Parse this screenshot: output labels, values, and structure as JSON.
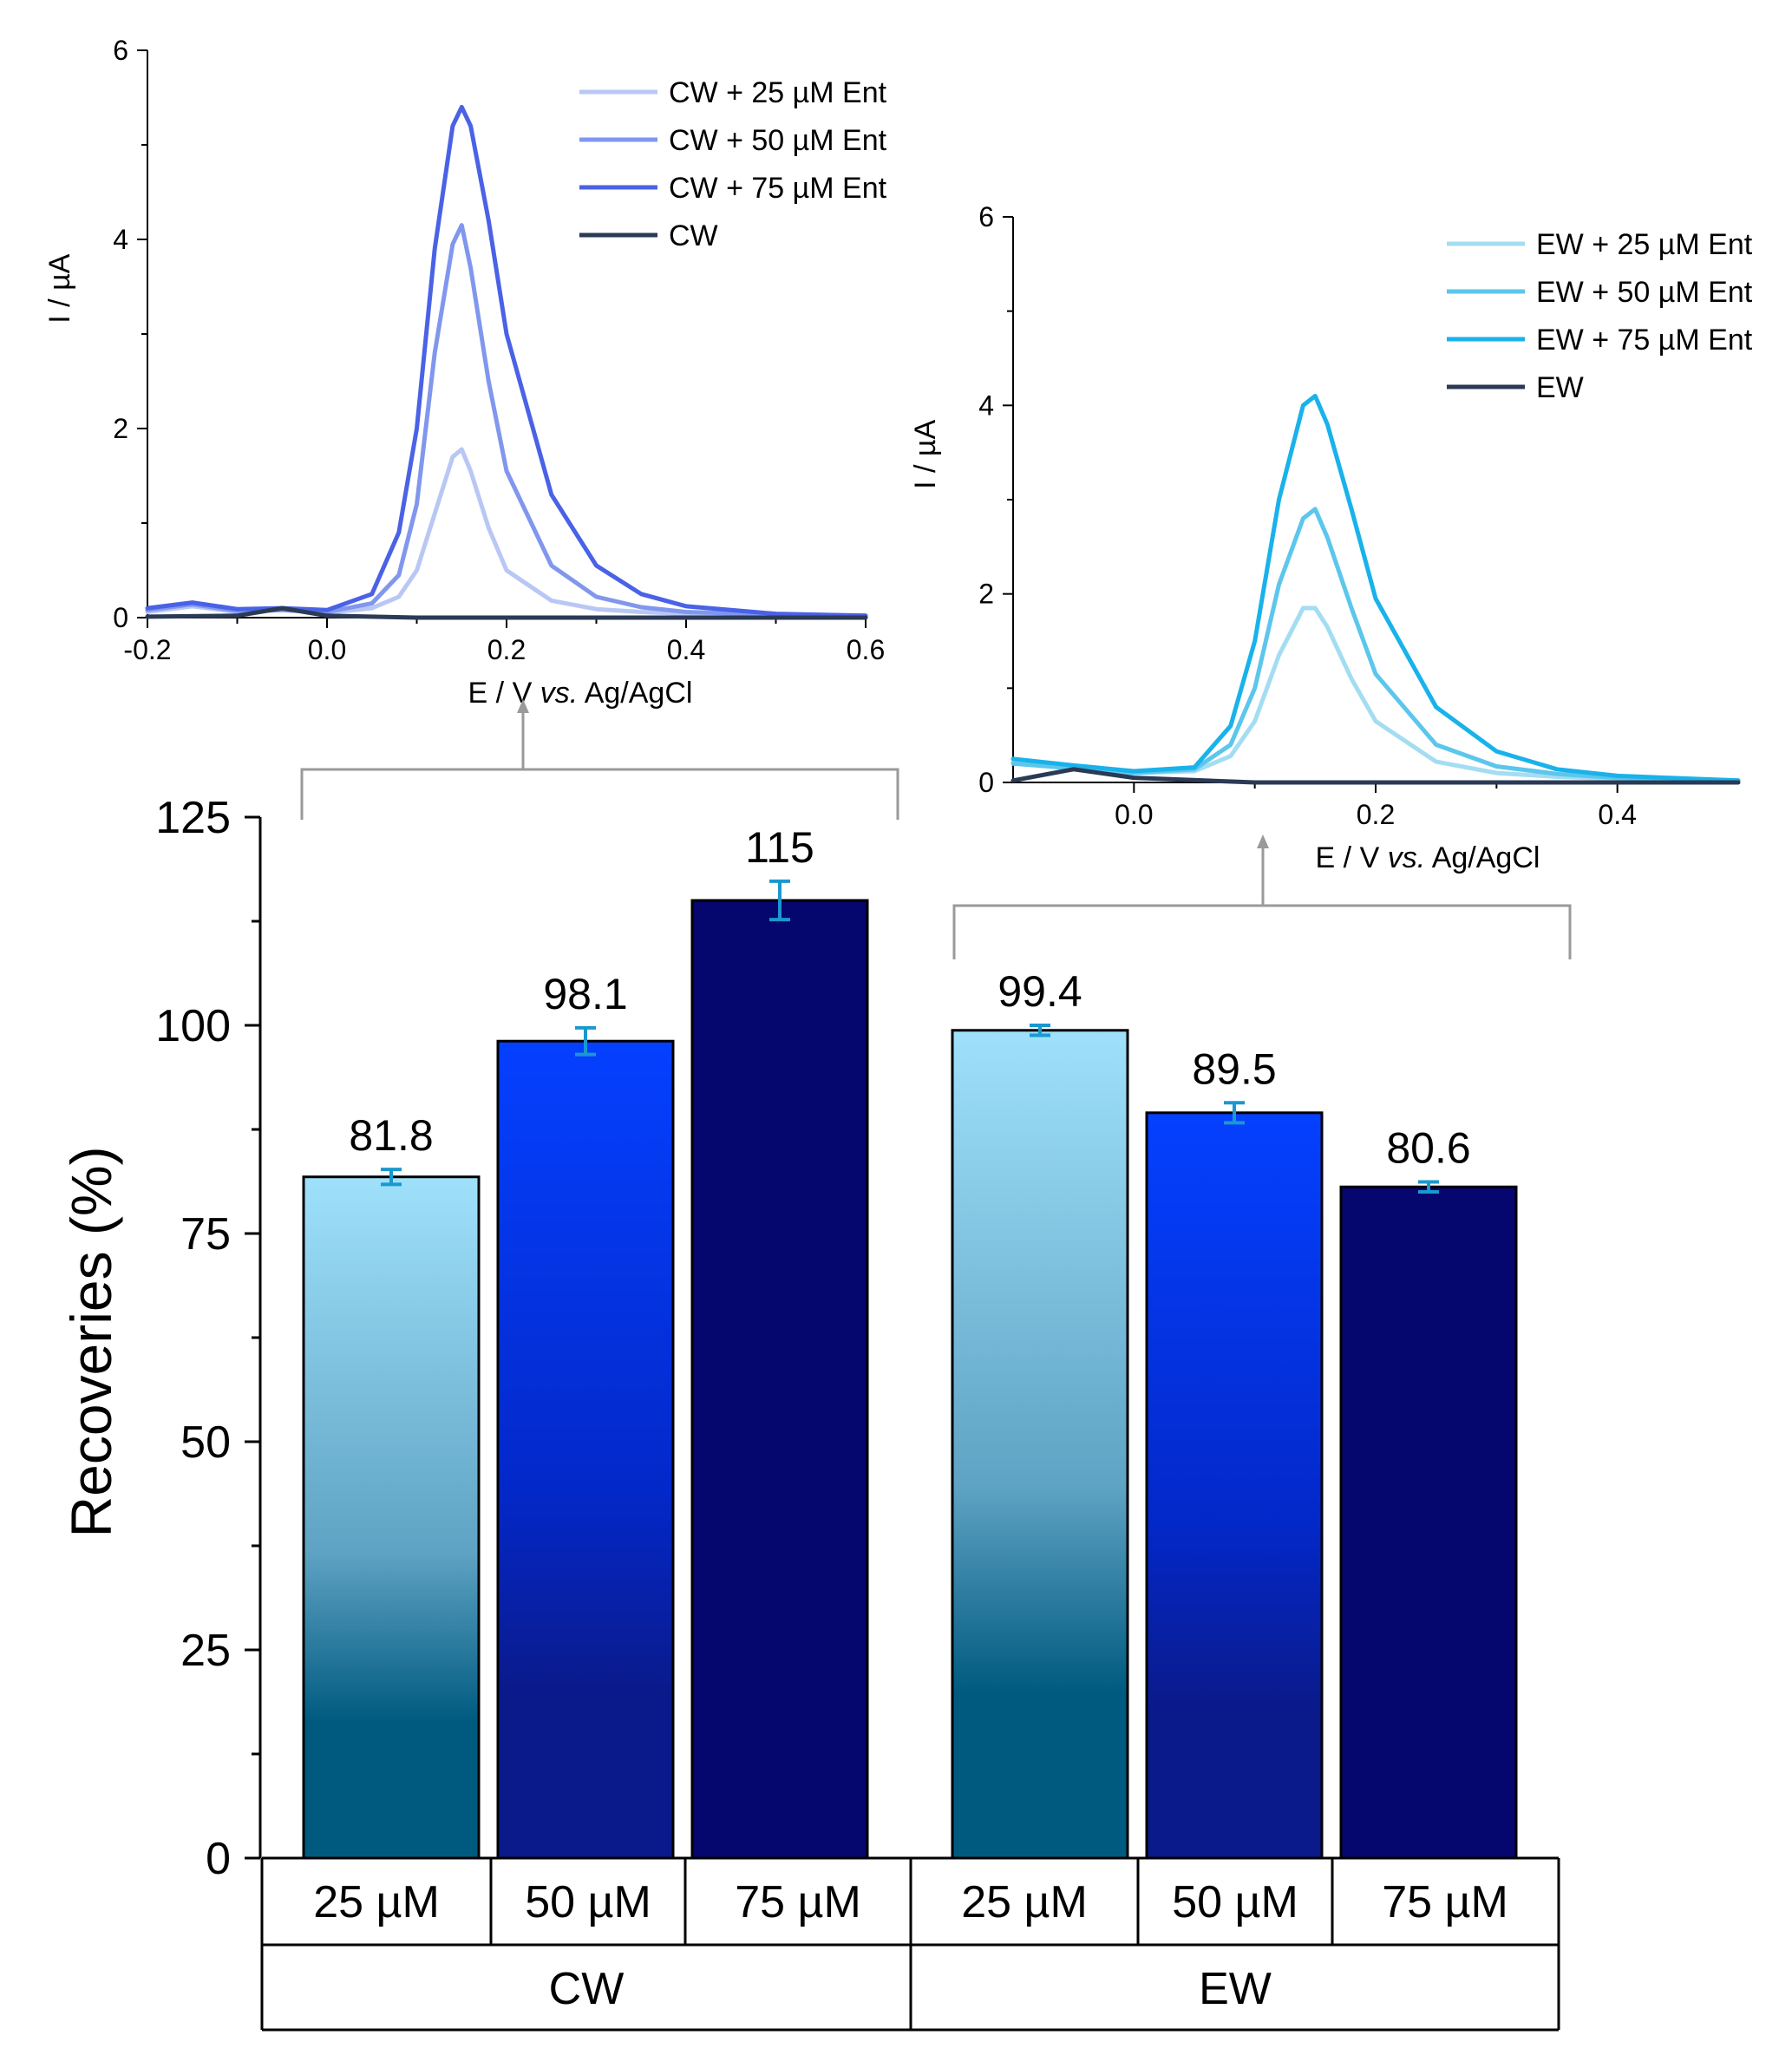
{
  "chart_data": [
    {
      "id": "cw_voltammogram",
      "type": "line",
      "xlabel_parts": [
        "E / V ",
        "vs.",
        " Ag/AgCl"
      ],
      "ylabel": "I / µA",
      "xlim": [
        -0.2,
        0.6
      ],
      "ylim": [
        0,
        6
      ],
      "xticks": [
        -0.2,
        0.0,
        0.2,
        0.4,
        0.6
      ],
      "xtick_labels": [
        "-0.2",
        "0.0",
        "0.2",
        "0.4",
        "0.6"
      ],
      "yticks": [
        0,
        2,
        4,
        6
      ],
      "ytick_labels": [
        "0",
        "2",
        "4",
        "6"
      ],
      "legend_position": "top-right",
      "series": [
        {
          "name": "CW + 25 µM Ent",
          "color": "#b9c7f5",
          "x": [
            -0.2,
            -0.15,
            -0.1,
            -0.05,
            0.0,
            0.05,
            0.08,
            0.1,
            0.12,
            0.14,
            0.15,
            0.16,
            0.18,
            0.2,
            0.25,
            0.3,
            0.35,
            0.4,
            0.5,
            0.6
          ],
          "y": [
            0.06,
            0.12,
            0.06,
            0.08,
            0.05,
            0.1,
            0.22,
            0.5,
            1.1,
            1.7,
            1.78,
            1.55,
            0.95,
            0.5,
            0.18,
            0.09,
            0.06,
            0.04,
            0.03,
            0.02
          ]
        },
        {
          "name": "CW + 50 µM Ent",
          "color": "#8197ee",
          "x": [
            -0.2,
            -0.15,
            -0.1,
            -0.05,
            0.0,
            0.05,
            0.08,
            0.1,
            0.12,
            0.14,
            0.15,
            0.16,
            0.18,
            0.2,
            0.25,
            0.3,
            0.35,
            0.4,
            0.5,
            0.6
          ],
          "y": [
            0.08,
            0.14,
            0.07,
            0.08,
            0.06,
            0.15,
            0.45,
            1.2,
            2.8,
            3.95,
            4.15,
            3.7,
            2.5,
            1.55,
            0.55,
            0.22,
            0.11,
            0.06,
            0.03,
            0.02
          ]
        },
        {
          "name": "CW + 75 µM Ent",
          "color": "#4a62e6",
          "x": [
            -0.2,
            -0.15,
            -0.1,
            -0.05,
            0.0,
            0.05,
            0.08,
            0.1,
            0.12,
            0.14,
            0.15,
            0.16,
            0.18,
            0.2,
            0.25,
            0.3,
            0.35,
            0.4,
            0.5,
            0.6
          ],
          "y": [
            0.1,
            0.16,
            0.09,
            0.1,
            0.08,
            0.25,
            0.9,
            2.0,
            3.9,
            5.2,
            5.4,
            5.2,
            4.2,
            3.0,
            1.3,
            0.55,
            0.25,
            0.12,
            0.04,
            0.02
          ]
        },
        {
          "name": "CW",
          "color": "#2b3a55",
          "x": [
            -0.2,
            -0.1,
            -0.05,
            0.0,
            0.1,
            0.2,
            0.4,
            0.6
          ],
          "y": [
            0.01,
            0.02,
            0.1,
            0.02,
            0.0,
            0.0,
            0.0,
            0.0
          ]
        }
      ]
    },
    {
      "id": "ew_voltammogram",
      "type": "line",
      "xlabel_parts": [
        "E / V ",
        "vs.",
        " Ag/AgCl"
      ],
      "ylabel": "I / µA",
      "xlim": [
        -0.1,
        0.5
      ],
      "ylim": [
        0,
        6
      ],
      "xticks": [
        0.0,
        0.2,
        0.4
      ],
      "xtick_labels": [
        "0.0",
        "0.2",
        "0.4"
      ],
      "yticks": [
        0,
        2,
        4,
        6
      ],
      "ytick_labels": [
        "0",
        "2",
        "4",
        "6"
      ],
      "legend_position": "top-right",
      "series": [
        {
          "name": "EW + 25 µM Ent",
          "color": "#a3ddf2",
          "x": [
            -0.1,
            -0.05,
            0.0,
            0.05,
            0.08,
            0.1,
            0.12,
            0.14,
            0.15,
            0.16,
            0.18,
            0.2,
            0.25,
            0.3,
            0.35,
            0.4,
            0.5
          ],
          "y": [
            0.22,
            0.14,
            0.1,
            0.12,
            0.28,
            0.65,
            1.35,
            1.85,
            1.85,
            1.65,
            1.1,
            0.65,
            0.22,
            0.1,
            0.06,
            0.04,
            0.02
          ]
        },
        {
          "name": "EW + 50 µM Ent",
          "color": "#5cc6ec",
          "x": [
            -0.1,
            -0.05,
            0.0,
            0.05,
            0.08,
            0.1,
            0.12,
            0.14,
            0.15,
            0.16,
            0.18,
            0.2,
            0.25,
            0.3,
            0.35,
            0.4,
            0.5
          ],
          "y": [
            0.2,
            0.15,
            0.1,
            0.14,
            0.4,
            1.0,
            2.1,
            2.8,
            2.9,
            2.6,
            1.85,
            1.15,
            0.4,
            0.17,
            0.09,
            0.05,
            0.02
          ]
        },
        {
          "name": "EW + 75 µM Ent",
          "color": "#19b2ea",
          "x": [
            -0.1,
            -0.05,
            0.0,
            0.05,
            0.08,
            0.1,
            0.12,
            0.14,
            0.15,
            0.16,
            0.18,
            0.2,
            0.25,
            0.3,
            0.35,
            0.4,
            0.5
          ],
          "y": [
            0.25,
            0.18,
            0.12,
            0.16,
            0.6,
            1.5,
            3.0,
            4.0,
            4.1,
            3.8,
            2.9,
            1.95,
            0.8,
            0.33,
            0.14,
            0.07,
            0.02
          ]
        },
        {
          "name": "EW",
          "color": "#2b3a55",
          "x": [
            -0.1,
            -0.05,
            0.0,
            0.1,
            0.2,
            0.3,
            0.5
          ],
          "y": [
            0.02,
            0.14,
            0.05,
            0.0,
            0.0,
            0.0,
            0.0
          ]
        }
      ]
    },
    {
      "id": "recoveries_bar",
      "type": "bar",
      "ylabel": "Recoveries (%)",
      "ylim": [
        0,
        125
      ],
      "yticks": [
        0,
        25,
        50,
        75,
        100,
        125
      ],
      "ytick_labels": [
        "0",
        "25",
        "50",
        "75",
        "100",
        "125"
      ],
      "categories": [
        "25 µM",
        "50 µM",
        "75 µM",
        "25 µM",
        "50 µM",
        "75 µM"
      ],
      "groups": [
        {
          "name": "CW",
          "indices": [
            0,
            1,
            2
          ]
        },
        {
          "name": "EW",
          "indices": [
            3,
            4,
            5
          ]
        }
      ],
      "values": [
        81.8,
        98.1,
        115,
        99.4,
        89.5,
        80.6
      ],
      "value_labels": [
        "81.8",
        "98.1",
        "115",
        "99.4",
        "89.5",
        "80.6"
      ],
      "errors": [
        0.9,
        1.6,
        2.3,
        0.6,
        1.2,
        0.6
      ],
      "error_color": "#1a98cf",
      "fills": [
        {
          "kind": "gradient",
          "top": "#9fe1fb",
          "bottom": "#005a80"
        },
        {
          "kind": "gradient",
          "top": "#0540ff",
          "bottom": "#0a1a8a"
        },
        {
          "kind": "solid",
          "color": "#06066f"
        },
        {
          "kind": "gradient",
          "top": "#9fe1fb",
          "bottom": "#005a80"
        },
        {
          "kind": "gradient",
          "top": "#0540ff",
          "bottom": "#0a1a8a"
        },
        {
          "kind": "solid",
          "color": "#06066f"
        }
      ]
    }
  ]
}
